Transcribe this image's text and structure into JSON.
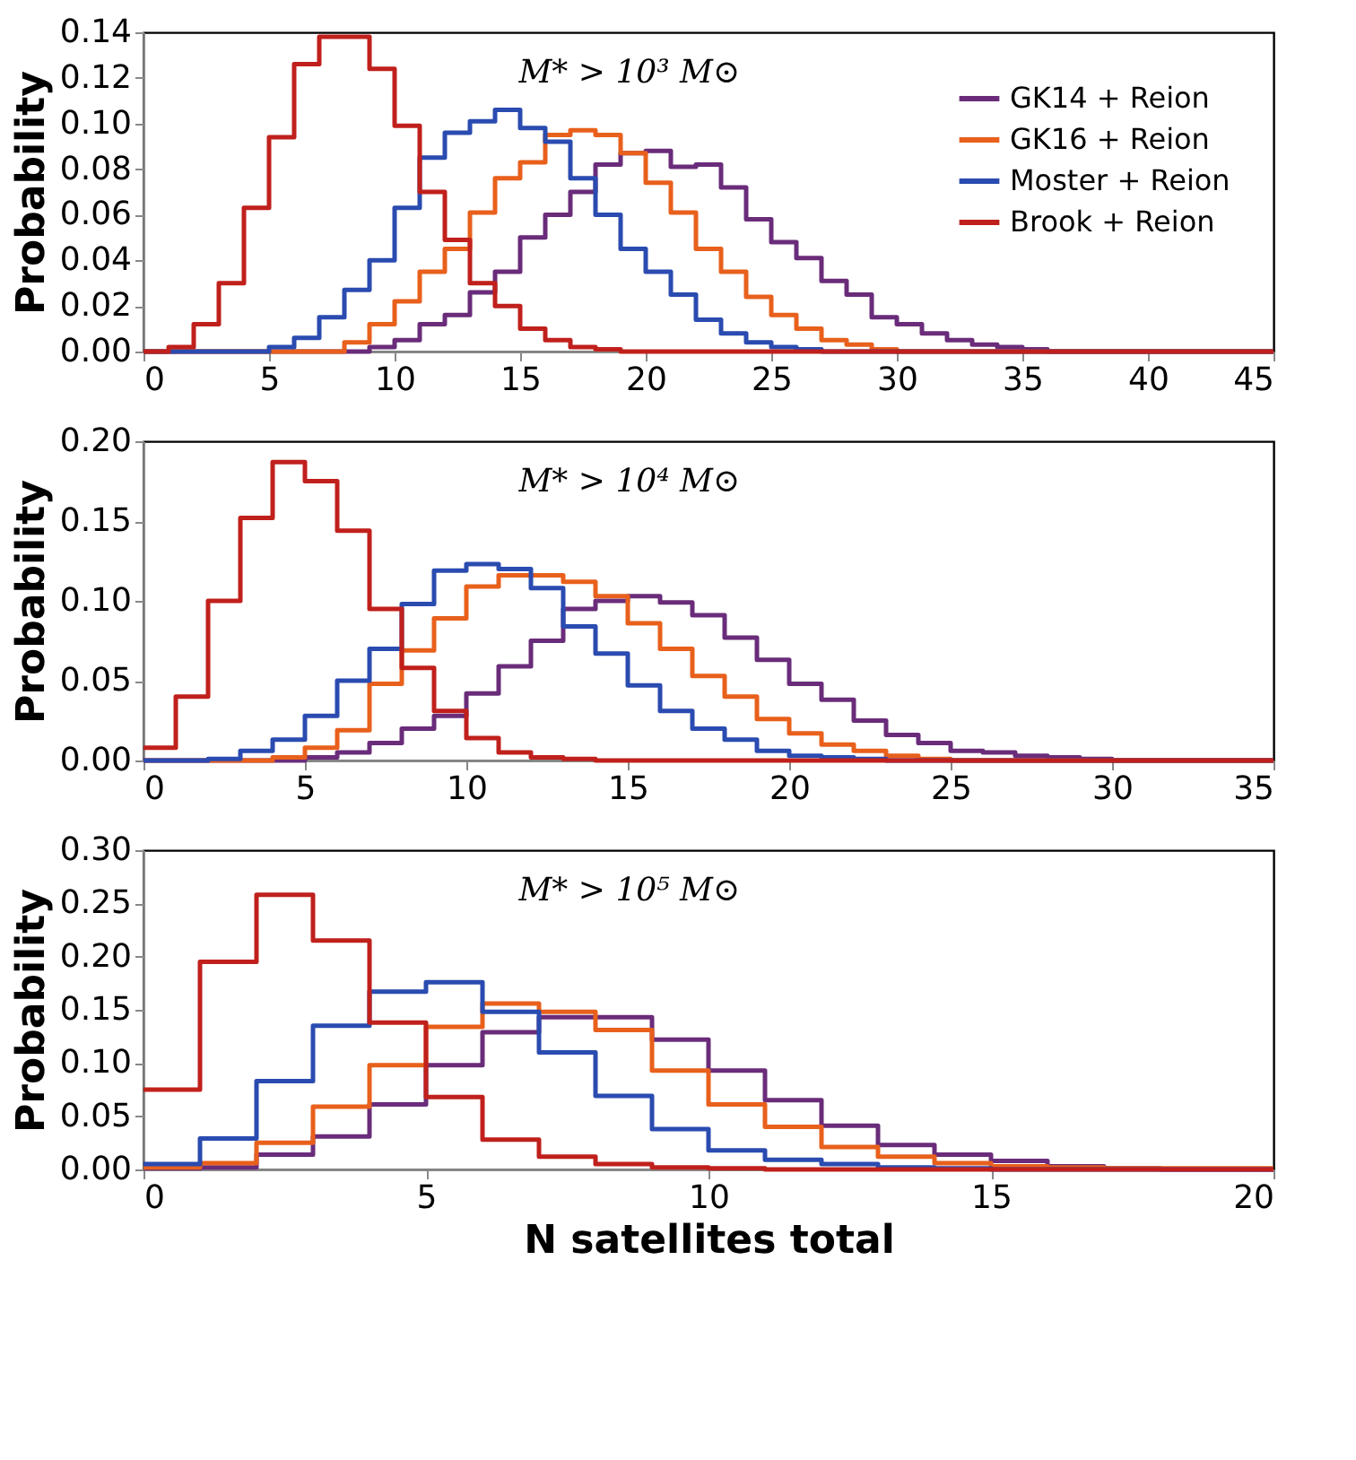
{
  "chart_data": [
    {
      "type": "histogram",
      "ylabel": "Probability",
      "annotations": [
        "M* > 10³ M⊙"
      ],
      "legend": "top right",
      "grid": false,
      "bins": [
        0,
        1,
        2,
        3,
        4,
        5,
        6,
        7,
        8,
        9,
        10,
        11,
        12,
        13,
        14,
        15,
        16,
        17,
        18,
        19,
        20,
        21,
        22,
        23,
        24,
        25,
        26,
        27,
        28,
        29,
        30,
        31,
        32,
        33,
        34,
        35,
        36,
        37,
        38,
        39,
        40,
        41,
        42,
        43,
        44,
        45
      ],
      "xlim": [
        0,
        45
      ],
      "xticks": [
        0,
        5,
        10,
        15,
        20,
        25,
        30,
        35,
        40,
        45
      ],
      "ylim": [
        0,
        0.14
      ],
      "yticks": [
        {
          "value": 0,
          "label": "0.00"
        },
        {
          "value": 0.02,
          "label": "0.02"
        },
        {
          "value": 0.04,
          "label": "0.04"
        },
        {
          "value": 0.06,
          "label": "0.06"
        },
        {
          "value": 0.08,
          "label": "0.08"
        },
        {
          "value": 0.1,
          "label": "0.10"
        },
        {
          "value": 0.12,
          "label": "0.12"
        },
        {
          "value": 0.14,
          "label": "0.14"
        }
      ],
      "series": [
        {
          "name": "GK14 + Reion",
          "color": "#6a2c7a",
          "values": [
            0,
            0,
            0,
            0,
            0,
            0,
            0,
            0,
            0,
            0.002,
            0.005,
            0.012,
            0.016,
            0.026,
            0.035,
            0.05,
            0.06,
            0.07,
            0.082,
            0.087,
            0.088,
            0.081,
            0.082,
            0.072,
            0.058,
            0.048,
            0.041,
            0.031,
            0.025,
            0.015,
            0.012,
            0.008,
            0.005,
            0.003,
            0.002,
            0.001,
            0,
            0,
            0,
            0,
            0,
            0,
            0,
            0,
            0
          ]
        },
        {
          "name": "GK16 + Reion",
          "color": "#e8601c",
          "values": [
            0,
            0,
            0,
            0,
            0,
            0,
            0,
            0,
            0.004,
            0.012,
            0.022,
            0.035,
            0.045,
            0.061,
            0.076,
            0.083,
            0.095,
            0.097,
            0.095,
            0.087,
            0.074,
            0.061,
            0.045,
            0.035,
            0.024,
            0.016,
            0.01,
            0.005,
            0.003,
            0.001,
            0,
            0,
            0,
            0,
            0,
            0,
            0,
            0,
            0,
            0,
            0,
            0,
            0,
            0,
            0
          ]
        },
        {
          "name": "Moster + Reion",
          "color": "#2a4bb0",
          "values": [
            0,
            0,
            0,
            0,
            0,
            0.002,
            0.006,
            0.015,
            0.027,
            0.04,
            0.063,
            0.085,
            0.096,
            0.101,
            0.106,
            0.098,
            0.092,
            0.076,
            0.06,
            0.045,
            0.035,
            0.025,
            0.014,
            0.008,
            0.004,
            0.002,
            0.001,
            0,
            0,
            0,
            0,
            0,
            0,
            0,
            0,
            0,
            0,
            0,
            0,
            0,
            0,
            0,
            0,
            0,
            0
          ]
        },
        {
          "name": "Brook + Reion",
          "color": "#c0201c",
          "values": [
            0,
            0.002,
            0.012,
            0.03,
            0.063,
            0.094,
            0.126,
            0.138,
            0.138,
            0.124,
            0.099,
            0.07,
            0.049,
            0.03,
            0.02,
            0.01,
            0.005,
            0.002,
            0.001,
            0,
            0,
            0,
            0,
            0,
            0,
            0,
            0,
            0,
            0,
            0,
            0,
            0,
            0,
            0,
            0,
            0,
            0,
            0,
            0,
            0,
            0,
            0,
            0,
            0,
            0
          ]
        }
      ]
    },
    {
      "type": "histogram",
      "ylabel": "Probability",
      "annotations": [
        "M* > 10⁴ M⊙"
      ],
      "grid": false,
      "bins": [
        0,
        1,
        2,
        3,
        4,
        5,
        6,
        7,
        8,
        9,
        10,
        11,
        12,
        13,
        14,
        15,
        16,
        17,
        18,
        19,
        20,
        21,
        22,
        23,
        24,
        25,
        26,
        27,
        28,
        29,
        30,
        31,
        32,
        33,
        34,
        35
      ],
      "xlim": [
        0,
        35
      ],
      "xticks": [
        0,
        5,
        10,
        15,
        20,
        25,
        30,
        35
      ],
      "ylim": [
        0,
        0.2
      ],
      "yticks": [
        {
          "value": 0,
          "label": "0.00"
        },
        {
          "value": 0.05,
          "label": "0.05"
        },
        {
          "value": 0.1,
          "label": "0.10"
        },
        {
          "value": 0.15,
          "label": "0.15"
        },
        {
          "value": 0.2,
          "label": "0.20"
        }
      ],
      "series": [
        {
          "color": "#6a2c7a",
          "values": [
            0,
            0,
            0,
            0,
            0,
            0.002,
            0.005,
            0.011,
            0.02,
            0.028,
            0.042,
            0.059,
            0.075,
            0.095,
            0.1,
            0.103,
            0.099,
            0.091,
            0.077,
            0.063,
            0.048,
            0.038,
            0.025,
            0.016,
            0.011,
            0.006,
            0.005,
            0.003,
            0.002,
            0.001,
            0,
            0,
            0,
            0,
            0
          ]
        },
        {
          "color": "#e8601c",
          "values": [
            0,
            0,
            0,
            0,
            0.002,
            0.008,
            0.019,
            0.048,
            0.069,
            0.089,
            0.109,
            0.116,
            0.116,
            0.112,
            0.103,
            0.086,
            0.07,
            0.053,
            0.04,
            0.026,
            0.017,
            0.01,
            0.006,
            0.003,
            0.001,
            0,
            0,
            0,
            0,
            0,
            0,
            0,
            0,
            0,
            0
          ]
        },
        {
          "color": "#2a4bb0",
          "values": [
            0,
            0,
            0.001,
            0.006,
            0.013,
            0.028,
            0.05,
            0.07,
            0.098,
            0.119,
            0.123,
            0.12,
            0.108,
            0.084,
            0.067,
            0.047,
            0.031,
            0.02,
            0.013,
            0.006,
            0.003,
            0.002,
            0.001,
            0,
            0,
            0,
            0,
            0,
            0,
            0,
            0,
            0,
            0,
            0,
            0
          ]
        },
        {
          "color": "#c0201c",
          "values": [
            0.008,
            0.04,
            0.1,
            0.152,
            0.187,
            0.175,
            0.144,
            0.095,
            0.058,
            0.031,
            0.014,
            0.005,
            0.002,
            0.001,
            0,
            0,
            0,
            0,
            0,
            0,
            0,
            0,
            0,
            0,
            0,
            0,
            0,
            0,
            0,
            0,
            0,
            0,
            0,
            0,
            0
          ]
        }
      ]
    },
    {
      "type": "histogram",
      "ylabel": "Probability",
      "xlabel": "N satellites total",
      "annotations": [
        "M* > 10⁵ M⊙"
      ],
      "grid": false,
      "bins": [
        0,
        1,
        2,
        3,
        4,
        5,
        6,
        7,
        8,
        9,
        10,
        11,
        12,
        13,
        14,
        15,
        16,
        17,
        18,
        19,
        20
      ],
      "xlim": [
        0,
        20
      ],
      "xticks": [
        0,
        5,
        10,
        15,
        20
      ],
      "ylim": [
        0,
        0.3
      ],
      "yticks": [
        {
          "value": 0,
          "label": "0.00"
        },
        {
          "value": 0.05,
          "label": "0.05"
        },
        {
          "value": 0.1,
          "label": "0.10"
        },
        {
          "value": 0.15,
          "label": "0.15"
        },
        {
          "value": 0.2,
          "label": "0.20"
        },
        {
          "value": 0.25,
          "label": "0.25"
        },
        {
          "value": 0.3,
          "label": "0.30"
        }
      ],
      "series": [
        {
          "color": "#6a2c7a",
          "values": [
            0.001,
            0.002,
            0.014,
            0.031,
            0.061,
            0.098,
            0.129,
            0.143,
            0.143,
            0.122,
            0.093,
            0.065,
            0.041,
            0.023,
            0.014,
            0.008,
            0.003,
            0.001,
            0,
            0
          ]
        },
        {
          "color": "#e8601c",
          "values": [
            0.002,
            0.006,
            0.025,
            0.059,
            0.098,
            0.134,
            0.156,
            0.148,
            0.131,
            0.093,
            0.061,
            0.04,
            0.021,
            0.012,
            0.006,
            0.003,
            0.002,
            0.001,
            0.001,
            0.001
          ]
        },
        {
          "color": "#2a4bb0",
          "values": [
            0.005,
            0.029,
            0.083,
            0.135,
            0.167,
            0.176,
            0.148,
            0.11,
            0.069,
            0.038,
            0.018,
            0.009,
            0.005,
            0.002,
            0.001,
            0,
            0,
            0,
            0,
            0
          ]
        },
        {
          "color": "#c0201c",
          "values": [
            0.075,
            0.195,
            0.258,
            0.215,
            0.138,
            0.068,
            0.028,
            0.012,
            0.005,
            0.002,
            0.001,
            0,
            0,
            0,
            0,
            0,
            0,
            0,
            0,
            0
          ]
        }
      ]
    }
  ]
}
